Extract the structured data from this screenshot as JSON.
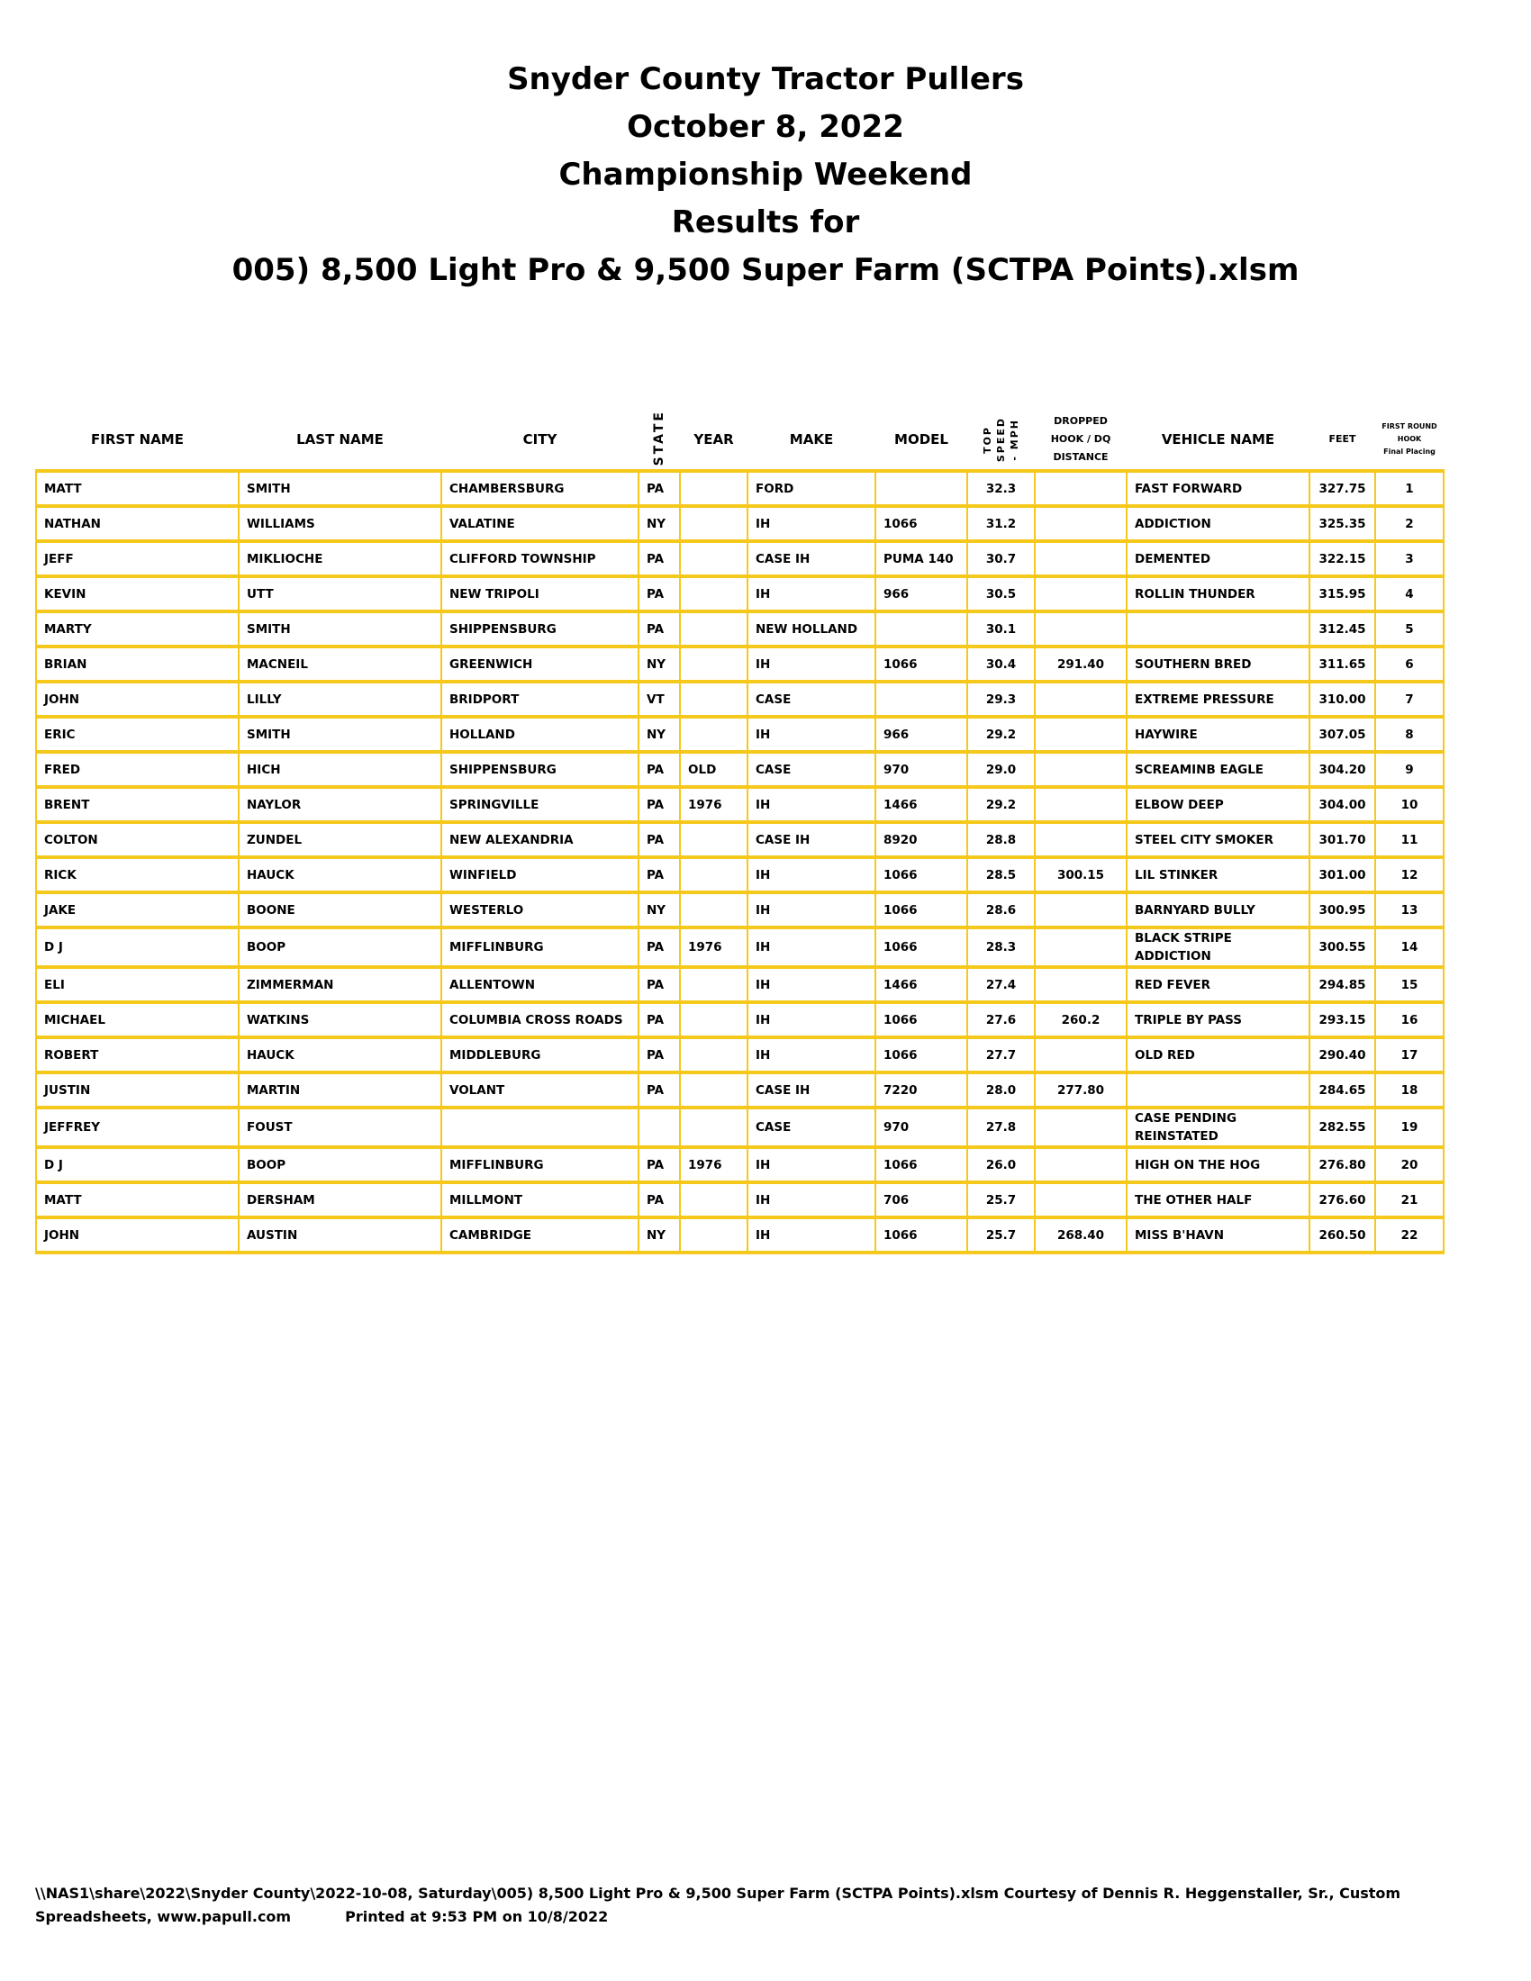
{
  "header": {
    "title_lines": [
      "Snyder County Tractor Pullers",
      "October 8, 2022",
      "Championship Weekend",
      "Results for",
      "005) 8,500 Light Pro & 9,500 Super Farm (SCTPA Points).xlsm"
    ]
  },
  "accent_color": "#f5c81c",
  "table": {
    "columns": {
      "first_name": "FIRST NAME",
      "last_name": "LAST NAME",
      "city": "CITY",
      "state": "STATE",
      "year": "YEAR",
      "make": "MAKE",
      "model": "MODEL",
      "top_speed": [
        "TOP",
        "SPEED",
        "- MPH"
      ],
      "dropped_hook": [
        "DROPPED",
        "HOOK / DQ",
        "DISTANCE"
      ],
      "vehicle_name": "VEHICLE NAME",
      "feet": "FEET",
      "placing": [
        "FIRST ROUND",
        "HOOK",
        "Final Placing"
      ]
    },
    "rows": [
      {
        "first": "MATT",
        "last": "SMITH",
        "city": "CHAMBERSBURG",
        "state": "PA",
        "year": "",
        "make": "FORD",
        "model": "",
        "speed": "32.3",
        "dq": "",
        "vehicle": "FAST FORWARD",
        "feet": "327.75",
        "place": "1"
      },
      {
        "first": "NATHAN",
        "last": "WILLIAMS",
        "city": "VALATINE",
        "state": "NY",
        "year": "",
        "make": "IH",
        "model": "1066",
        "speed": "31.2",
        "dq": "",
        "vehicle": "ADDICTION",
        "feet": "325.35",
        "place": "2"
      },
      {
        "first": "JEFF",
        "last": "MIKLIOCHE",
        "city": "CLIFFORD TOWNSHIP",
        "state": "PA",
        "year": "",
        "make": "CASE IH",
        "model": "PUMA 140",
        "speed": "30.7",
        "dq": "",
        "vehicle": "DEMENTED",
        "feet": "322.15",
        "place": "3"
      },
      {
        "first": "KEVIN",
        "last": "UTT",
        "city": "NEW TRIPOLI",
        "state": "PA",
        "year": "",
        "make": "IH",
        "model": "966",
        "speed": "30.5",
        "dq": "",
        "vehicle": "ROLLIN THUNDER",
        "feet": "315.95",
        "place": "4"
      },
      {
        "first": "MARTY",
        "last": "SMITH",
        "city": "SHIPPENSBURG",
        "state": "PA",
        "year": "",
        "make": "NEW HOLLAND",
        "model": "",
        "speed": "30.1",
        "dq": "",
        "vehicle": "",
        "feet": "312.45",
        "place": "5"
      },
      {
        "first": "BRIAN",
        "last": "MACNEIL",
        "city": "GREENWICH",
        "state": "NY",
        "year": "",
        "make": "IH",
        "model": "1066",
        "speed": "30.4",
        "dq": "291.40",
        "vehicle": "SOUTHERN BRED",
        "feet": "311.65",
        "place": "6"
      },
      {
        "first": "JOHN",
        "last": "LILLY",
        "city": "BRIDPORT",
        "state": "VT",
        "year": "",
        "make": "CASE",
        "model": "",
        "speed": "29.3",
        "dq": "",
        "vehicle": "EXTREME PRESSURE",
        "feet": "310.00",
        "place": "7"
      },
      {
        "first": "ERIC",
        "last": "SMITH",
        "city": "HOLLAND",
        "state": "NY",
        "year": "",
        "make": "IH",
        "model": "966",
        "speed": "29.2",
        "dq": "",
        "vehicle": "HAYWIRE",
        "feet": "307.05",
        "place": "8"
      },
      {
        "first": "FRED",
        "last": "HICH",
        "city": "SHIPPENSBURG",
        "state": "PA",
        "year": "OLD",
        "make": "CASE",
        "model": "970",
        "speed": "29.0",
        "dq": "",
        "vehicle": "SCREAMINB EAGLE",
        "feet": "304.20",
        "place": "9"
      },
      {
        "first": "BRENT",
        "last": "NAYLOR",
        "city": "SPRINGVILLE",
        "state": "PA",
        "year": "1976",
        "make": "IH",
        "model": "1466",
        "speed": "29.2",
        "dq": "",
        "vehicle": "ELBOW DEEP",
        "feet": "304.00",
        "place": "10"
      },
      {
        "first": "COLTON",
        "last": "ZUNDEL",
        "city": "NEW ALEXANDRIA",
        "state": "PA",
        "year": "",
        "make": "CASE IH",
        "model": "8920",
        "speed": "28.8",
        "dq": "",
        "vehicle": "STEEL CITY SMOKER",
        "feet": "301.70",
        "place": "11"
      },
      {
        "first": "RICK",
        "last": "HAUCK",
        "city": "WINFIELD",
        "state": "PA",
        "year": "",
        "make": "IH",
        "model": "1066",
        "speed": "28.5",
        "dq": "300.15",
        "vehicle": "LIL STINKER",
        "feet": "301.00",
        "place": "12"
      },
      {
        "first": "JAKE",
        "last": "BOONE",
        "city": "WESTERLO",
        "state": "NY",
        "year": "",
        "make": "IH",
        "model": "1066",
        "speed": "28.6",
        "dq": "",
        "vehicle": "BARNYARD BULLY",
        "feet": "300.95",
        "place": "13"
      },
      {
        "first": "D J",
        "last": "BOOP",
        "city": "MIFFLINBURG",
        "state": "PA",
        "year": "1976",
        "make": "IH",
        "model": "1066",
        "speed": "28.3",
        "dq": "",
        "vehicle": "BLACK STRIPE ADDICTION",
        "feet": "300.55",
        "place": "14"
      },
      {
        "first": "ELI",
        "last": "ZIMMERMAN",
        "city": "ALLENTOWN",
        "state": "PA",
        "year": "",
        "make": "IH",
        "model": "1466",
        "speed": "27.4",
        "dq": "",
        "vehicle": "RED FEVER",
        "feet": "294.85",
        "place": "15"
      },
      {
        "first": "MICHAEL",
        "last": "WATKINS",
        "city": "COLUMBIA CROSS ROADS",
        "state": "PA",
        "year": "",
        "make": "IH",
        "model": "1066",
        "speed": "27.6",
        "dq": "260.2",
        "vehicle": "TRIPLE BY PASS",
        "feet": "293.15",
        "place": "16"
      },
      {
        "first": "ROBERT",
        "last": "HAUCK",
        "city": "MIDDLEBURG",
        "state": "PA",
        "year": "",
        "make": "IH",
        "model": "1066",
        "speed": "27.7",
        "dq": "",
        "vehicle": "OLD RED",
        "feet": "290.40",
        "place": "17"
      },
      {
        "first": "JUSTIN",
        "last": "MARTIN",
        "city": "VOLANT",
        "state": "PA",
        "year": "",
        "make": "CASE IH",
        "model": "7220",
        "speed": "28.0",
        "dq": "277.80",
        "vehicle": "",
        "feet": "284.65",
        "place": "18"
      },
      {
        "first": "JEFFREY",
        "last": "FOUST",
        "city": "",
        "state": "",
        "year": "",
        "make": "CASE",
        "model": "970",
        "speed": "27.8",
        "dq": "",
        "vehicle": "CASE PENDING REINSTATED",
        "feet": "282.55",
        "place": "19"
      },
      {
        "first": "D J",
        "last": "BOOP",
        "city": "MIFFLINBURG",
        "state": "PA",
        "year": "1976",
        "make": "IH",
        "model": "1066",
        "speed": "26.0",
        "dq": "",
        "vehicle": "HIGH ON THE HOG",
        "feet": "276.80",
        "place": "20"
      },
      {
        "first": "MATT",
        "last": "DERSHAM",
        "city": "MILLMONT",
        "state": "PA",
        "year": "",
        "make": "IH",
        "model": "706",
        "speed": "25.7",
        "dq": "",
        "vehicle": "THE OTHER HALF",
        "feet": "276.60",
        "place": "21"
      },
      {
        "first": "JOHN",
        "last": "AUSTIN",
        "city": "CAMBRIDGE",
        "state": "NY",
        "year": "",
        "make": "IH",
        "model": "1066",
        "speed": "25.7",
        "dq": "268.40",
        "vehicle": "MISS B'HAVN",
        "feet": "260.50",
        "place": "22"
      }
    ]
  },
  "footer": {
    "path_line": "\\\\NAS1\\share\\2022\\Snyder County\\2022-10-08, Saturday\\005) 8,500 Light Pro & 9,500 Super Farm (SCTPA Points).xlsm  Courtesy of Dennis R. Heggenstaller, Sr., Custom",
    "website": "Spreadsheets, www.papull.com",
    "printed": "Printed at 9:53 PM on 10/8/2022"
  }
}
